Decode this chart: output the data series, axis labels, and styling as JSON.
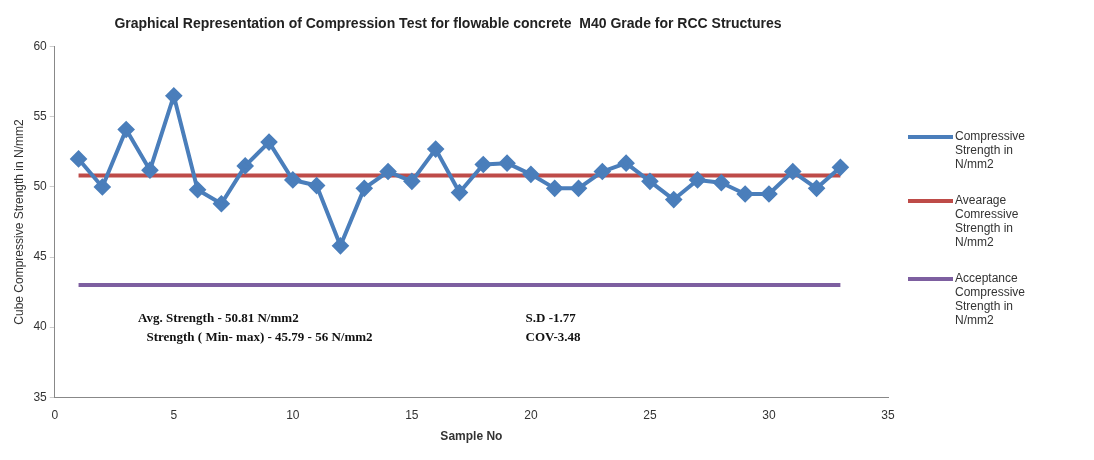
{
  "chart_data": {
    "type": "line",
    "title": "Graphical Representation of Compression Test for flowable concrete  M40 Grade for RCC Structures",
    "xlabel": "Sample No",
    "ylabel": "Cube Compressive Strength in N/mm2",
    "x": [
      1,
      2,
      3,
      4,
      5,
      6,
      7,
      8,
      9,
      10,
      11,
      12,
      13,
      14,
      15,
      16,
      17,
      18,
      19,
      20,
      21,
      22,
      23,
      24,
      25,
      26,
      27,
      28,
      29,
      30,
      31,
      32,
      33
    ],
    "series": [
      {
        "name": "Compressive Strength in N/mm2",
        "color": "#4a7ebb",
        "marker": "diamond",
        "values": [
          52.0,
          50.0,
          54.1,
          51.2,
          56.5,
          49.8,
          48.8,
          51.5,
          53.2,
          50.5,
          50.1,
          45.8,
          49.9,
          51.1,
          50.4,
          52.7,
          49.6,
          51.6,
          51.7,
          50.9,
          49.9,
          49.9,
          51.1,
          51.7,
          50.4,
          49.1,
          50.5,
          50.3,
          49.5,
          49.5,
          51.1,
          49.9,
          51.4
        ]
      },
      {
        "name": "Avearage Comressive Strength in N/mm2",
        "color": "#be4b48",
        "marker": "none",
        "values": [
          50.81,
          50.81,
          50.81,
          50.81,
          50.81,
          50.81,
          50.81,
          50.81,
          50.81,
          50.81,
          50.81,
          50.81,
          50.81,
          50.81,
          50.81,
          50.81,
          50.81,
          50.81,
          50.81,
          50.81,
          50.81,
          50.81,
          50.81,
          50.81,
          50.81,
          50.81,
          50.81,
          50.81,
          50.81,
          50.81,
          50.81,
          50.81,
          50.81
        ]
      },
      {
        "name": "Acceptance Compressive Strength in N/mm2",
        "color": "#7d5fa0",
        "marker": "none",
        "values": [
          43,
          43,
          43,
          43,
          43,
          43,
          43,
          43,
          43,
          43,
          43,
          43,
          43,
          43,
          43,
          43,
          43,
          43,
          43,
          43,
          43,
          43,
          43,
          43,
          43,
          43,
          43,
          43,
          43,
          43,
          43,
          43,
          43
        ]
      }
    ],
    "xlim": [
      0,
      35
    ],
    "xticks": [
      0,
      5,
      10,
      15,
      20,
      25,
      30,
      35
    ],
    "ylim": [
      35,
      60
    ],
    "yticks": [
      35,
      40,
      45,
      50,
      55,
      60
    ],
    "grid": false,
    "legend": "right",
    "line_style": "solid",
    "annotations": [
      "Avg. Strength - 50.81 N/mm2",
      "Strength ( Min- max) - 45.79 - 56 N/mm2",
      "S.D -1.77",
      "COV-3.48"
    ]
  }
}
